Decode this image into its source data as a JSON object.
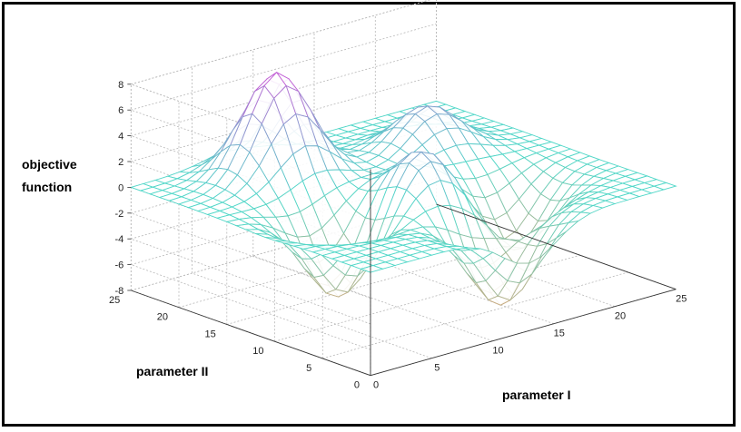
{
  "chart_data": {
    "type": "surface-mesh",
    "title": "",
    "zlabel": "objective function",
    "zlabel_lines": [
      "objective",
      "function"
    ],
    "xlabel": "parameter I",
    "ylabel": "parameter II",
    "xlim": [
      0,
      25
    ],
    "ylim": [
      0,
      25
    ],
    "zlim": [
      -8,
      8
    ],
    "x_ticks": [
      0,
      5,
      10,
      15,
      20,
      25
    ],
    "y_ticks": [
      0,
      5,
      10,
      15,
      20,
      25
    ],
    "z_ticks": [
      8,
      6,
      4,
      2,
      0,
      -2,
      -4,
      -6,
      -8
    ],
    "grid": true,
    "grid_size": 25,
    "colormap": "cool-summer",
    "features": [
      {
        "kind": "peak",
        "x": 8,
        "y": 20,
        "height": 8.1
      },
      {
        "kind": "peak",
        "x": 18,
        "y": 17,
        "height": 3.6
      },
      {
        "kind": "peak",
        "x": 12,
        "y": 10,
        "height": 3.8
      },
      {
        "kind": "trough",
        "x": 6,
        "y": 11,
        "depth": -6.5
      },
      {
        "kind": "trough",
        "x": 18,
        "y": 8,
        "depth": -5.2
      },
      {
        "kind": "trough",
        "x": 13,
        "y": 3,
        "depth": -6.8
      }
    ],
    "colors": {
      "axis": "#333333",
      "grid": "#b8b8b8"
    }
  }
}
